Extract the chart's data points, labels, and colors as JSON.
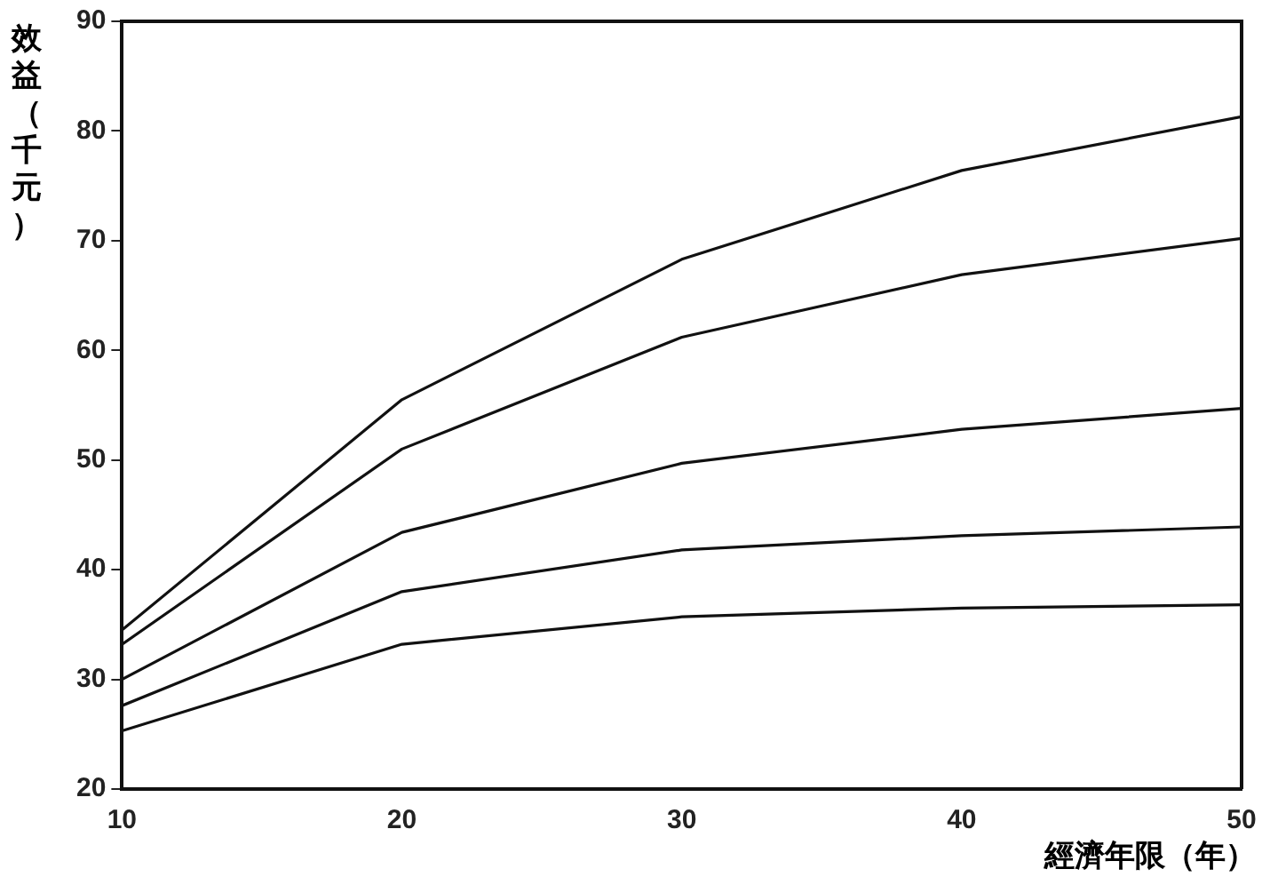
{
  "chart_data": {
    "type": "line",
    "xlabel": "經濟年限（年）",
    "ylabel": "效益（千元）",
    "x": [
      10,
      20,
      30,
      40,
      50
    ],
    "series": [
      {
        "color": "#111111",
        "values": [
          34.5,
          55.5,
          68.3,
          76.4,
          81.3
        ]
      },
      {
        "color": "#111111",
        "values": [
          33.2,
          51,
          61.2,
          66.9,
          70.2
        ]
      },
      {
        "color": "#111111",
        "values": [
          30,
          43.4,
          49.7,
          52.8,
          54.7
        ]
      },
      {
        "color": "#111111",
        "values": [
          27.6,
          38,
          41.8,
          43.1,
          43.9
        ]
      },
      {
        "color": "#111111",
        "values": [
          25.3,
          33.2,
          35.7,
          36.5,
          36.8
        ]
      }
    ],
    "xlim": [
      10,
      50
    ],
    "xticks": [
      10,
      20,
      30,
      40,
      50
    ],
    "ylim": [
      20,
      90
    ],
    "yticks": [
      20,
      30,
      40,
      50,
      60,
      70,
      80,
      90
    ],
    "grid": false,
    "legend": false,
    "marker": "none",
    "line_style": "solid"
  }
}
